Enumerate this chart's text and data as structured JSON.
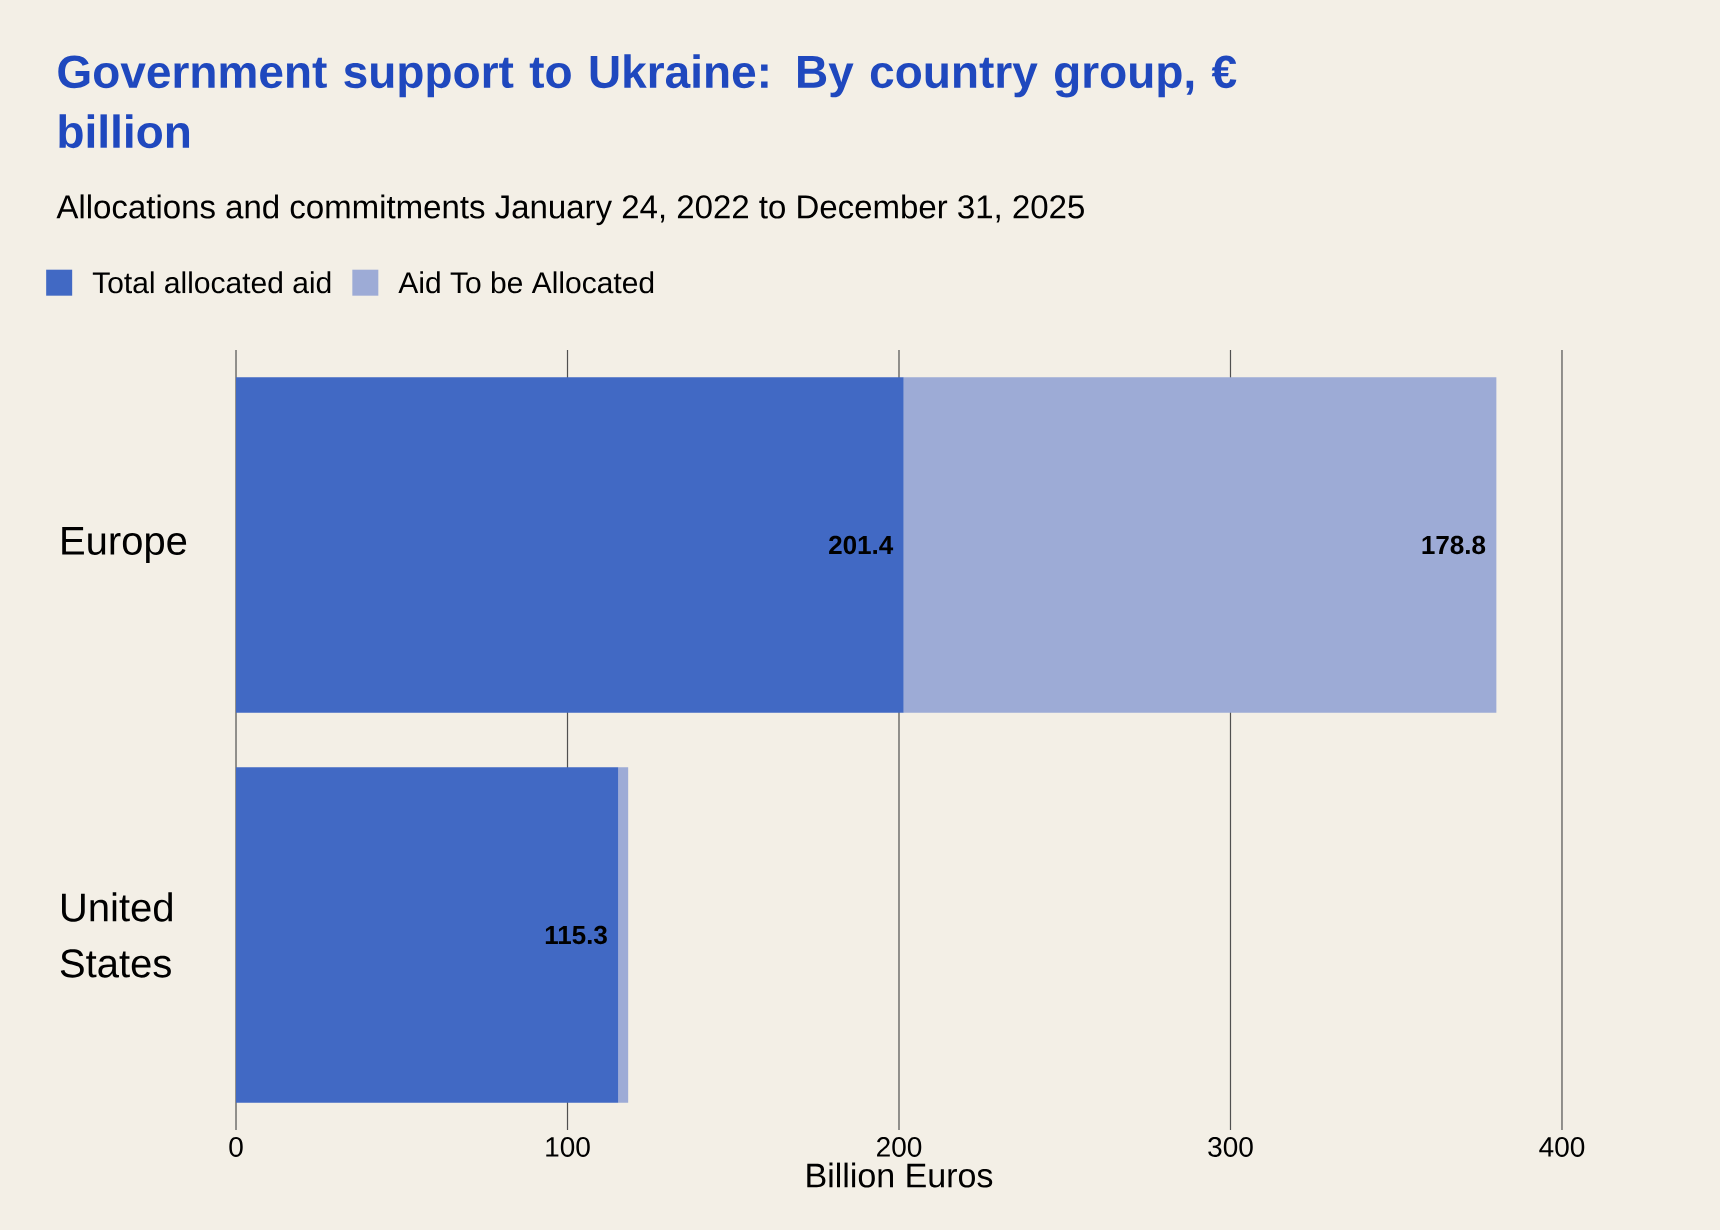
{
  "chart_data": {
    "type": "bar",
    "orientation": "horizontal",
    "stacked": true,
    "title": "Government support to Ukraine: By country group, € billion",
    "subtitle": "Allocations and commitments January 24, 2022 to December 31, 2025",
    "xlabel": "Billion Euros",
    "categories": [
      "Europe",
      "United States"
    ],
    "series": [
      {
        "name": "Total allocated aid",
        "color": "#4169c4",
        "values": [
          201.4,
          115.3
        ],
        "value_labels": [
          "201.4",
          "115.3"
        ]
      },
      {
        "name": "Aid To be Allocated",
        "color": "#9dabd6",
        "values": [
          178.8,
          3.0
        ],
        "value_labels": [
          "178.8",
          null
        ]
      }
    ],
    "xlim": [
      0,
      400
    ],
    "xticks": [
      0,
      100,
      200,
      300,
      400
    ],
    "grid": "x",
    "legend": "top left"
  }
}
